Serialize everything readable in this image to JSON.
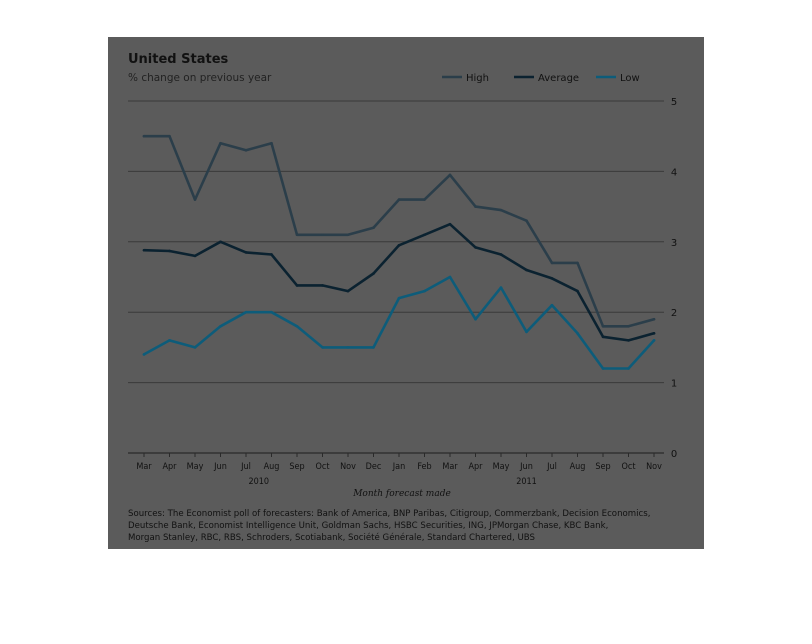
{
  "chart_data": {
    "type": "line",
    "title": "United States",
    "subtitle": "% change on previous year",
    "xlabel": "Month forecast made",
    "categories": [
      "Mar",
      "Apr",
      "May",
      "Jun",
      "Jul",
      "Aug",
      "Sep",
      "Oct",
      "Nov",
      "Dec",
      "Jan",
      "Feb",
      "Mar",
      "Apr",
      "May",
      "Jun",
      "Jul",
      "Aug",
      "Sep",
      "Oct",
      "Nov"
    ],
    "year_labels": [
      {
        "label": "2010",
        "index": 4.5
      },
      {
        "label": "2011",
        "index": 15
      }
    ],
    "ylim": [
      0,
      5.5
    ],
    "yticks": [
      0,
      1,
      2,
      3,
      4,
      5
    ],
    "grid": true,
    "legend": "top-right",
    "series": [
      {
        "name": "High",
        "color": "#2b3e4a",
        "values": [
          4.5,
          4.5,
          3.6,
          4.4,
          4.3,
          4.4,
          3.1,
          3.1,
          3.1,
          3.2,
          3.6,
          3.6,
          3.95,
          3.5,
          3.45,
          3.3,
          2.7,
          2.7,
          1.8,
          1.8,
          1.9
        ]
      },
      {
        "name": "Average",
        "color": "#0b2230",
        "values": [
          2.88,
          2.87,
          2.8,
          3.0,
          2.85,
          2.82,
          2.38,
          2.38,
          2.3,
          2.55,
          2.95,
          3.1,
          3.25,
          2.92,
          2.82,
          2.6,
          2.48,
          2.3,
          1.65,
          1.6,
          1.7
        ]
      },
      {
        "name": "Low",
        "color": "#0d5c7a",
        "values": [
          1.4,
          1.6,
          1.5,
          1.8,
          2.0,
          2.0,
          1.8,
          1.5,
          1.5,
          1.5,
          2.2,
          2.3,
          2.5,
          1.9,
          2.35,
          1.72,
          2.1,
          1.7,
          1.2,
          1.2,
          1.6
        ]
      }
    ],
    "sources": [
      "Sources: The Economist poll of forecasters: Bank of America, BNP Paribas, Citigroup, Commerzbank, Decision Economics,",
      "Deutsche Bank, Economist Intelligence Unit, Goldman Sachs, HSBC Securities, ING, JPMorgan Chase, KBC Bank,",
      "Morgan Stanley, RBC, RBS, Schroders, Scotiabank, Société Générale, Standard Chartered, UBS"
    ]
  }
}
